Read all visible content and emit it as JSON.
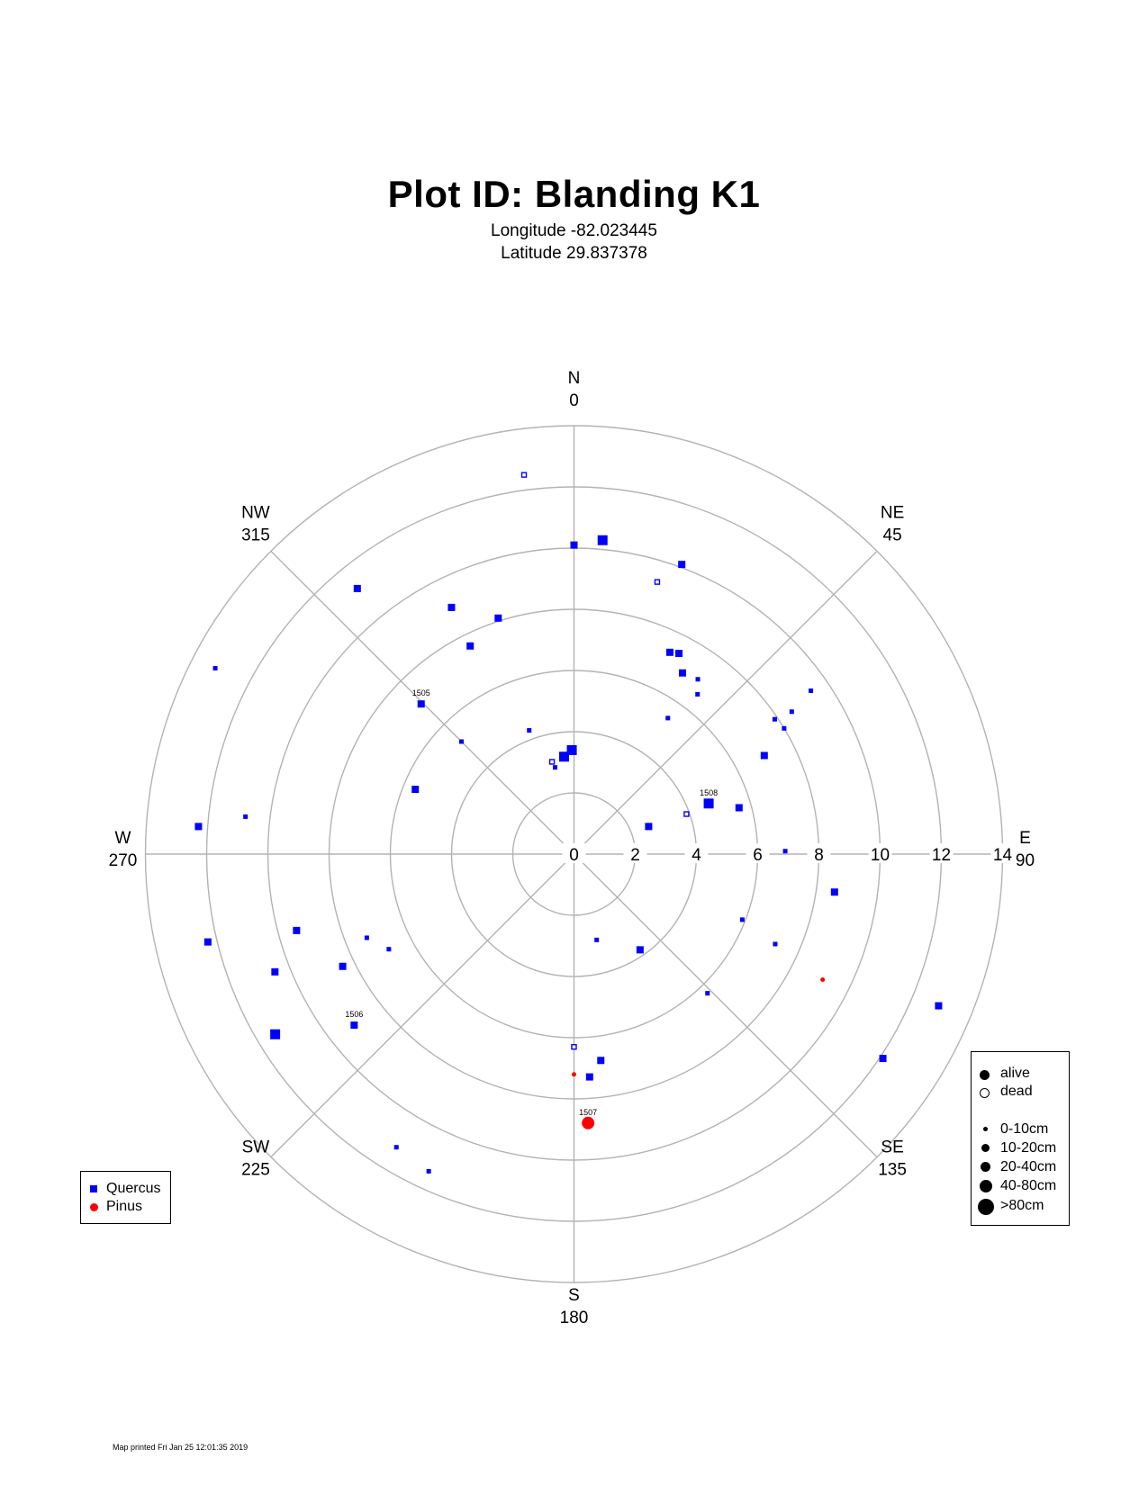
{
  "header": {
    "title": "Plot ID:  Blanding K1",
    "longitude": "Longitude -82.023445",
    "latitude": "Latitude 29.837378"
  },
  "footer": {
    "printed": "Map printed Fri Jan 25 12:01:35 2019"
  },
  "colors": {
    "quercus": "#0000ff",
    "pinus": "#ff0000",
    "grid": "#b3b3b3"
  },
  "chart_data": {
    "type": "scatter",
    "coordinate_system": "polar (azimuth in degrees, distance in radial units)",
    "title": "Plot ID:  Blanding K1",
    "radial_range": [
      0,
      14
    ],
    "radial_ticks": [
      "0",
      "2",
      "4",
      "6",
      "8",
      "10",
      "12",
      "14"
    ],
    "directions": [
      {
        "name": "N",
        "deg": "0",
        "azimuth": 0
      },
      {
        "name": "NE",
        "deg": "45",
        "azimuth": 45
      },
      {
        "name": "E",
        "deg": "90",
        "azimuth": 90
      },
      {
        "name": "SE",
        "deg": "135",
        "azimuth": 135
      },
      {
        "name": "S",
        "deg": "180",
        "azimuth": 180
      },
      {
        "name": "SW",
        "deg": "225",
        "azimuth": 225
      },
      {
        "name": "W",
        "deg": "270",
        "azimuth": 270
      },
      {
        "name": "NW",
        "deg": "315",
        "azimuth": 315
      }
    ],
    "legend_species": [
      {
        "label": "Quercus",
        "marker": "square",
        "color": "#0000ff"
      },
      {
        "label": "Pinus",
        "marker": "circle",
        "color": "#ff0000"
      }
    ],
    "legend_status": [
      "alive",
      "dead"
    ],
    "legend_size": [
      "0-10cm",
      "10-20cm",
      "20-40cm",
      "40-80cm",
      ">80cm"
    ],
    "points": [
      {
        "species": "Quercus",
        "azimuth": 352.5,
        "distance": 12.5,
        "size_class": 1,
        "status": "dead"
      },
      {
        "species": "Quercus",
        "azimuth": 0,
        "distance": 10.1,
        "size_class": 2,
        "status": "alive"
      },
      {
        "species": "Quercus",
        "azimuth": 5.2,
        "distance": 10.3,
        "size_class": 3,
        "status": "alive"
      },
      {
        "species": "Quercus",
        "azimuth": 342.2,
        "distance": 8.1,
        "size_class": 2,
        "status": "alive"
      },
      {
        "species": "Quercus",
        "azimuth": 333.6,
        "distance": 9.0,
        "size_class": 2,
        "status": "alive"
      },
      {
        "species": "Quercus",
        "azimuth": 320.8,
        "distance": 11.2,
        "size_class": 2,
        "status": "alive"
      },
      {
        "species": "Quercus",
        "azimuth": 333.5,
        "distance": 7.6,
        "size_class": 2,
        "status": "alive"
      },
      {
        "species": "Quercus",
        "azimuth": 297.4,
        "distance": 13.2,
        "size_class": 1,
        "status": "alive"
      },
      {
        "species": "Quercus",
        "azimuth": 314.5,
        "distance": 7.0,
        "size_class": 2,
        "status": "alive",
        "label": "1505"
      },
      {
        "species": "Quercus",
        "azimuth": 315.0,
        "distance": 5.2,
        "size_class": 1,
        "status": "alive"
      },
      {
        "species": "Quercus",
        "azimuth": 340.1,
        "distance": 4.3,
        "size_class": 1,
        "status": "alive"
      },
      {
        "species": "Quercus",
        "azimuth": 354.2,
        "distance": 3.2,
        "size_class": 3,
        "status": "alive"
      },
      {
        "species": "Quercus",
        "azimuth": 358.8,
        "distance": 3.4,
        "size_class": 3,
        "status": "alive"
      },
      {
        "species": "Quercus",
        "azimuth": 346.6,
        "distance": 3.1,
        "size_class": 1,
        "status": "dead"
      },
      {
        "species": "Quercus",
        "azimuth": 347.7,
        "distance": 2.9,
        "size_class": 1,
        "status": "alive"
      },
      {
        "species": "Quercus",
        "azimuth": 292.2,
        "distance": 5.6,
        "size_class": 2,
        "status": "alive"
      },
      {
        "species": "Quercus",
        "azimuth": 276.5,
        "distance": 10.8,
        "size_class": 1,
        "status": "alive"
      },
      {
        "species": "Quercus",
        "azimuth": 274.2,
        "distance": 12.3,
        "size_class": 2,
        "status": "alive"
      },
      {
        "species": "Quercus",
        "azimuth": 20.4,
        "distance": 10.1,
        "size_class": 2,
        "status": "alive"
      },
      {
        "species": "Quercus",
        "azimuth": 17.0,
        "distance": 9.3,
        "size_class": 1,
        "status": "dead"
      },
      {
        "species": "Quercus",
        "azimuth": 25.4,
        "distance": 7.3,
        "size_class": 2,
        "status": "alive"
      },
      {
        "species": "Quercus",
        "azimuth": 27.6,
        "distance": 7.4,
        "size_class": 2,
        "status": "alive"
      },
      {
        "species": "Quercus",
        "azimuth": 30.9,
        "distance": 6.9,
        "size_class": 2,
        "status": "alive"
      },
      {
        "species": "Quercus",
        "azimuth": 35.3,
        "distance": 7.0,
        "size_class": 1,
        "status": "alive"
      },
      {
        "species": "Quercus",
        "azimuth": 37.7,
        "distance": 6.6,
        "size_class": 1,
        "status": "alive"
      },
      {
        "species": "Quercus",
        "azimuth": 34.6,
        "distance": 5.4,
        "size_class": 1,
        "status": "alive"
      },
      {
        "species": "Quercus",
        "azimuth": 56.8,
        "distance": 8.5,
        "size_class": 1,
        "status": "alive"
      },
      {
        "species": "Quercus",
        "azimuth": 55.4,
        "distance": 9.4,
        "size_class": 1,
        "status": "alive"
      },
      {
        "species": "Quercus",
        "azimuth": 59.1,
        "distance": 8.0,
        "size_class": 1,
        "status": "alive"
      },
      {
        "species": "Quercus",
        "azimuth": 56.1,
        "distance": 7.9,
        "size_class": 1,
        "status": "alive"
      },
      {
        "species": "Quercus",
        "azimuth": 62.6,
        "distance": 7.0,
        "size_class": 2,
        "status": "alive"
      },
      {
        "species": "Quercus",
        "azimuth": 69.4,
        "distance": 4.7,
        "size_class": 3,
        "status": "alive",
        "label": "1508"
      },
      {
        "species": "Quercus",
        "azimuth": 70.4,
        "distance": 3.9,
        "size_class": 1,
        "status": "dead"
      },
      {
        "species": "Quercus",
        "azimuth": 74.3,
        "distance": 5.6,
        "size_class": 2,
        "status": "alive"
      },
      {
        "species": "Quercus",
        "azimuth": 69.7,
        "distance": 2.6,
        "size_class": 2,
        "status": "alive"
      },
      {
        "species": "Quercus",
        "azimuth": 89.2,
        "distance": 6.9,
        "size_class": 1,
        "status": "alive"
      },
      {
        "species": "Quercus",
        "azimuth": 98.3,
        "distance": 8.6,
        "size_class": 2,
        "status": "alive"
      },
      {
        "species": "Quercus",
        "azimuth": 111.3,
        "distance": 5.9,
        "size_class": 1,
        "status": "alive"
      },
      {
        "species": "Quercus",
        "azimuth": 114.1,
        "distance": 7.2,
        "size_class": 1,
        "status": "alive"
      },
      {
        "species": "Quercus",
        "azimuth": 112.6,
        "distance": 12.9,
        "size_class": 2,
        "status": "alive"
      },
      {
        "species": "Quercus",
        "azimuth": 123.5,
        "distance": 12.1,
        "size_class": 2,
        "status": "alive"
      },
      {
        "species": "Quercus",
        "azimuth": 136.2,
        "distance": 6.3,
        "size_class": 1,
        "status": "alive"
      },
      {
        "species": "Quercus",
        "azimuth": 145.4,
        "distance": 3.8,
        "size_class": 2,
        "status": "alive"
      },
      {
        "species": "Quercus",
        "azimuth": 165.2,
        "distance": 2.9,
        "size_class": 1,
        "status": "alive"
      },
      {
        "species": "Quercus",
        "azimuth": 176.0,
        "distance": 7.3,
        "size_class": 2,
        "status": "alive"
      },
      {
        "species": "Quercus",
        "azimuth": 172.6,
        "distance": 6.8,
        "size_class": 2,
        "status": "alive"
      },
      {
        "species": "Quercus",
        "azimuth": 180.0,
        "distance": 6.3,
        "size_class": 1,
        "status": "dead"
      },
      {
        "species": "Quercus",
        "azimuth": 211.2,
        "distance": 11.2,
        "size_class": 1,
        "status": "alive"
      },
      {
        "species": "Quercus",
        "azimuth": 204.6,
        "distance": 11.4,
        "size_class": 1,
        "status": "alive"
      },
      {
        "species": "Quercus",
        "azimuth": 232.1,
        "distance": 9.1,
        "size_class": 2,
        "status": "alive",
        "label": "1506"
      },
      {
        "species": "Quercus",
        "azimuth": 238.9,
        "distance": 11.4,
        "size_class": 3,
        "status": "alive"
      },
      {
        "species": "Quercus",
        "azimuth": 248.5,
        "distance": 10.5,
        "size_class": 2,
        "status": "alive"
      },
      {
        "species": "Quercus",
        "azimuth": 244.1,
        "distance": 8.4,
        "size_class": 2,
        "status": "alive"
      },
      {
        "species": "Quercus",
        "azimuth": 248.0,
        "distance": 7.3,
        "size_class": 1,
        "status": "alive"
      },
      {
        "species": "Quercus",
        "azimuth": 242.8,
        "distance": 6.8,
        "size_class": 1,
        "status": "alive"
      },
      {
        "species": "Quercus",
        "azimuth": 254.6,
        "distance": 9.4,
        "size_class": 2,
        "status": "alive"
      },
      {
        "species": "Quercus",
        "azimuth": 256.5,
        "distance": 12.3,
        "size_class": 2,
        "status": "alive"
      },
      {
        "species": "Pinus",
        "azimuth": 180.0,
        "distance": 7.2,
        "size_class": 1,
        "status": "alive"
      },
      {
        "species": "Pinus",
        "azimuth": 177.0,
        "distance": 8.8,
        "size_class": 4,
        "status": "alive",
        "label": "1507"
      },
      {
        "species": "Pinus",
        "azimuth": 116.8,
        "distance": 9.1,
        "size_class": 1,
        "status": "alive"
      }
    ]
  }
}
